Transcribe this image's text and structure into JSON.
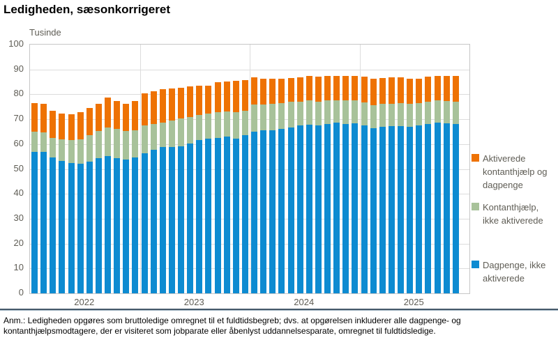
{
  "title": "Ledigheden, sæsonkorrigeret",
  "footnote": {
    "line1": "Anm.: Ledigheden opgøres som bruttoledige omregnet til et fuldtidsbegreb; dvs. at opgørelsen inkluderer alle dagpenge- og",
    "line2": "kontanthjælpsmodtagere, der er visiteret som jobparate eller åbenlyst uddannelsesparate, omregnet til fuldtidsledige."
  },
  "colors": {
    "dagpenge_blue": "#0d8bd1",
    "kontanthjaelp_green": "#a8c29a",
    "aktiverede_orange": "#ee7203",
    "gridline": "#dcdcdc",
    "frame": "#c6c6c6",
    "label_gray": "#5f5d55"
  },
  "legend": {
    "entries": [
      {
        "label": "Aktiverede kontanthjælp og dagpenge",
        "color": "#ee7203"
      },
      {
        "label": "Kontanthjælp, ikke aktiverede",
        "color": "#a8c29a"
      },
      {
        "label": "Dagpenge, ikke aktiverede",
        "color": "#0d8bd1"
      }
    ]
  },
  "chart_data": {
    "type": "bar",
    "stacked": true,
    "title": "Ledigheden, sæsonkorrigeret",
    "ylabel": "Tusinde",
    "ylim": [
      0,
      100
    ],
    "yticks": [
      0,
      10,
      20,
      30,
      40,
      50,
      60,
      70,
      80,
      90,
      100
    ],
    "grid": true,
    "legend_position": "right",
    "x_unit": "month",
    "year_groups": [
      {
        "label": "2022",
        "slots": 12,
        "bars": 12
      },
      {
        "label": "2023",
        "slots": 12,
        "bars": 12
      },
      {
        "label": "2024",
        "slots": 12,
        "bars": 12
      },
      {
        "label": "2025",
        "slots": 12,
        "bars": 11
      }
    ],
    "series": [
      {
        "name": "Dagpenge, ikke aktiverede",
        "color": "#0d8bd1",
        "values": [
          57.0,
          56.8,
          54.5,
          53.3,
          52.4,
          52.1,
          53.0,
          54.3,
          55.2,
          54.3,
          53.9,
          54.6,
          56.3,
          57.7,
          58.7,
          58.7,
          59.2,
          60.1,
          61.5,
          62.2,
          62.6,
          63.1,
          62.2,
          63.5,
          65.0,
          65.5,
          65.5,
          66.2,
          66.7,
          67.4,
          67.8,
          67.6,
          68.1,
          68.5,
          68.1,
          68.3,
          67.6,
          66.4,
          67.0,
          67.2,
          67.2,
          67.0,
          67.6,
          68.1,
          68.5,
          68.4,
          68.1
        ]
      },
      {
        "name": "Kontanthjælp, ikke aktiverede",
        "color": "#a8c29a",
        "values": [
          8.0,
          8.0,
          8.0,
          8.5,
          9.1,
          9.9,
          10.5,
          11.0,
          11.6,
          11.9,
          11.3,
          11.0,
          11.3,
          10.4,
          9.8,
          10.8,
          11.0,
          10.8,
          10.3,
          10.1,
          10.2,
          9.9,
          10.6,
          9.9,
          10.9,
          10.5,
          10.7,
          10.3,
          10.3,
          9.7,
          9.7,
          9.5,
          9.4,
          9.2,
          9.4,
          9.4,
          9.1,
          9.2,
          9.1,
          9.1,
          9.2,
          9.1,
          8.8,
          8.9,
          9.0,
          8.9,
          8.9
        ]
      },
      {
        "name": "Aktiverede kontanthjælp og dagpenge",
        "color": "#ee7203",
        "values": [
          11.4,
          11.4,
          10.9,
          10.4,
          10.5,
          10.9,
          11.0,
          11.0,
          11.8,
          11.1,
          10.9,
          11.6,
          12.7,
          13.2,
          13.6,
          12.9,
          12.5,
          12.2,
          11.6,
          11.3,
          12.0,
          12.2,
          12.7,
          12.4,
          10.9,
          10.4,
          10.0,
          9.9,
          9.6,
          9.7,
          9.8,
          10.1,
          9.8,
          9.8,
          9.8,
          9.8,
          10.3,
          10.6,
          10.5,
          10.5,
          10.3,
          10.3,
          10.0,
          10.0,
          10.0,
          10.0,
          10.5
        ]
      }
    ]
  }
}
